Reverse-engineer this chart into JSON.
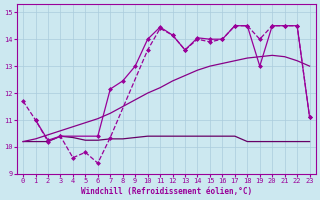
{
  "xlabel": "Windchill (Refroidissement éolien,°C)",
  "bg_color": "#cce8f0",
  "grid_color": "#aaccdd",
  "line_color": "#990099",
  "xlim": [
    -0.5,
    23.5
  ],
  "ylim": [
    9,
    15.3
  ],
  "yticks": [
    9,
    10,
    11,
    12,
    13,
    14,
    15
  ],
  "xticks": [
    0,
    1,
    2,
    3,
    4,
    5,
    6,
    7,
    8,
    9,
    10,
    11,
    12,
    13,
    14,
    15,
    16,
    17,
    18,
    19,
    20,
    21,
    22,
    23
  ],
  "line1_x": [
    0,
    1,
    2,
    3,
    4,
    5,
    6,
    7,
    10,
    11,
    12,
    13,
    14,
    15,
    16,
    17,
    18,
    19,
    20,
    21,
    22,
    23
  ],
  "line1_y": [
    11.7,
    11.0,
    10.2,
    10.4,
    9.6,
    9.8,
    9.4,
    10.35,
    13.6,
    14.4,
    14.15,
    13.6,
    14.0,
    13.9,
    14.0,
    14.5,
    14.5,
    14.0,
    14.5,
    14.5,
    14.5,
    11.1
  ],
  "line2_x": [
    1,
    2,
    3,
    6,
    7,
    8,
    9,
    10,
    11,
    12,
    13,
    14,
    15,
    16,
    17,
    18,
    19,
    20,
    21,
    22,
    23
  ],
  "line2_y": [
    11.0,
    10.25,
    10.4,
    10.4,
    12.15,
    12.45,
    13.0,
    14.0,
    14.45,
    14.15,
    13.6,
    14.05,
    14.0,
    14.0,
    14.5,
    14.5,
    13.0,
    14.5,
    14.5,
    14.5,
    11.1
  ],
  "line3_x": [
    0,
    1,
    2,
    3,
    4,
    5,
    6,
    7,
    8,
    9,
    10,
    11,
    12,
    13,
    14,
    15,
    16,
    17,
    18,
    19,
    20,
    21,
    22,
    23
  ],
  "line3_y": [
    10.2,
    10.2,
    10.2,
    10.4,
    10.35,
    10.25,
    10.25,
    10.3,
    10.3,
    10.35,
    10.4,
    10.4,
    10.4,
    10.4,
    10.4,
    10.4,
    10.4,
    10.4,
    10.2,
    10.2,
    10.2,
    10.2,
    10.2,
    10.2
  ],
  "line4_x": [
    0,
    1,
    2,
    3,
    4,
    5,
    6,
    7,
    8,
    9,
    10,
    11,
    12,
    13,
    14,
    15,
    16,
    17,
    18,
    19,
    20,
    21,
    22,
    23
  ],
  "line4_y": [
    10.2,
    10.3,
    10.45,
    10.6,
    10.75,
    10.9,
    11.05,
    11.25,
    11.5,
    11.75,
    12.0,
    12.2,
    12.45,
    12.65,
    12.85,
    13.0,
    13.1,
    13.2,
    13.3,
    13.35,
    13.4,
    13.35,
    13.2,
    13.0
  ]
}
